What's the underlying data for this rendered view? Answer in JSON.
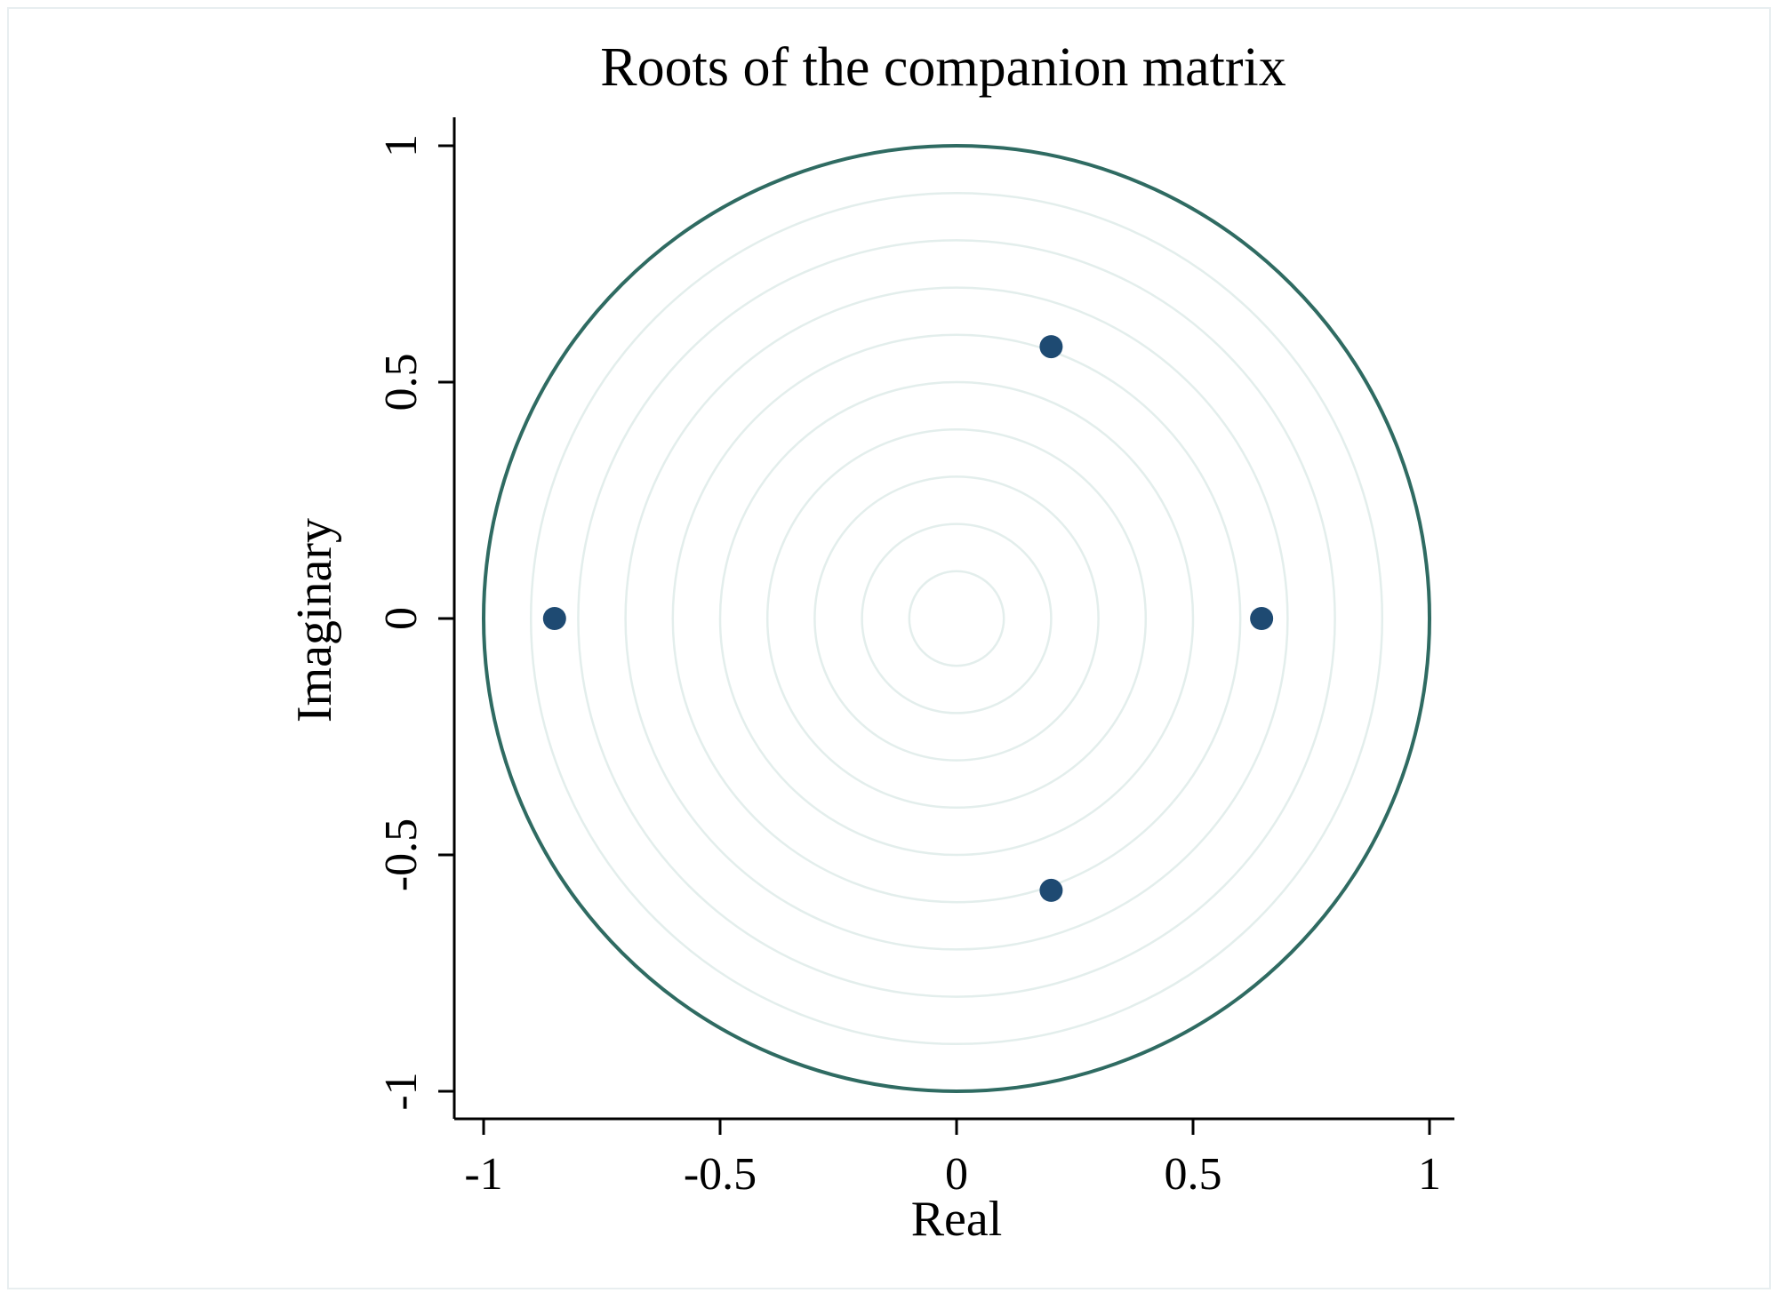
{
  "chart_data": {
    "type": "scatter",
    "title": "Roots of the companion matrix",
    "xlabel": "Real",
    "ylabel": "Imaginary",
    "xlim": [
      -1,
      1
    ],
    "ylim": [
      -1,
      1
    ],
    "x_ticks": [
      "-1",
      "-0.5",
      "0",
      "0.5",
      "1"
    ],
    "y_ticks": [
      "-1",
      "-0.5",
      "0",
      "0.5",
      "1"
    ],
    "x_tick_values": [
      -1,
      -0.5,
      0,
      0.5,
      1
    ],
    "y_tick_values": [
      -1,
      -0.5,
      0,
      0.5,
      1
    ],
    "grid": "concentric circles",
    "grid_radii": [
      0.1,
      0.2,
      0.3,
      0.4,
      0.5,
      0.6,
      0.7,
      0.8,
      0.9
    ],
    "unit_circle_radius": 1,
    "points": [
      {
        "x": -0.85,
        "y": 0
      },
      {
        "x": 0.2,
        "y": 0.575
      },
      {
        "x": 0.2,
        "y": -0.575
      },
      {
        "x": 0.645,
        "y": 0
      }
    ],
    "colors": {
      "unit_circle": "#2f6b62",
      "grid_circle": "#e3eeec",
      "points": "#1e4a72",
      "axis": "#000000"
    }
  }
}
